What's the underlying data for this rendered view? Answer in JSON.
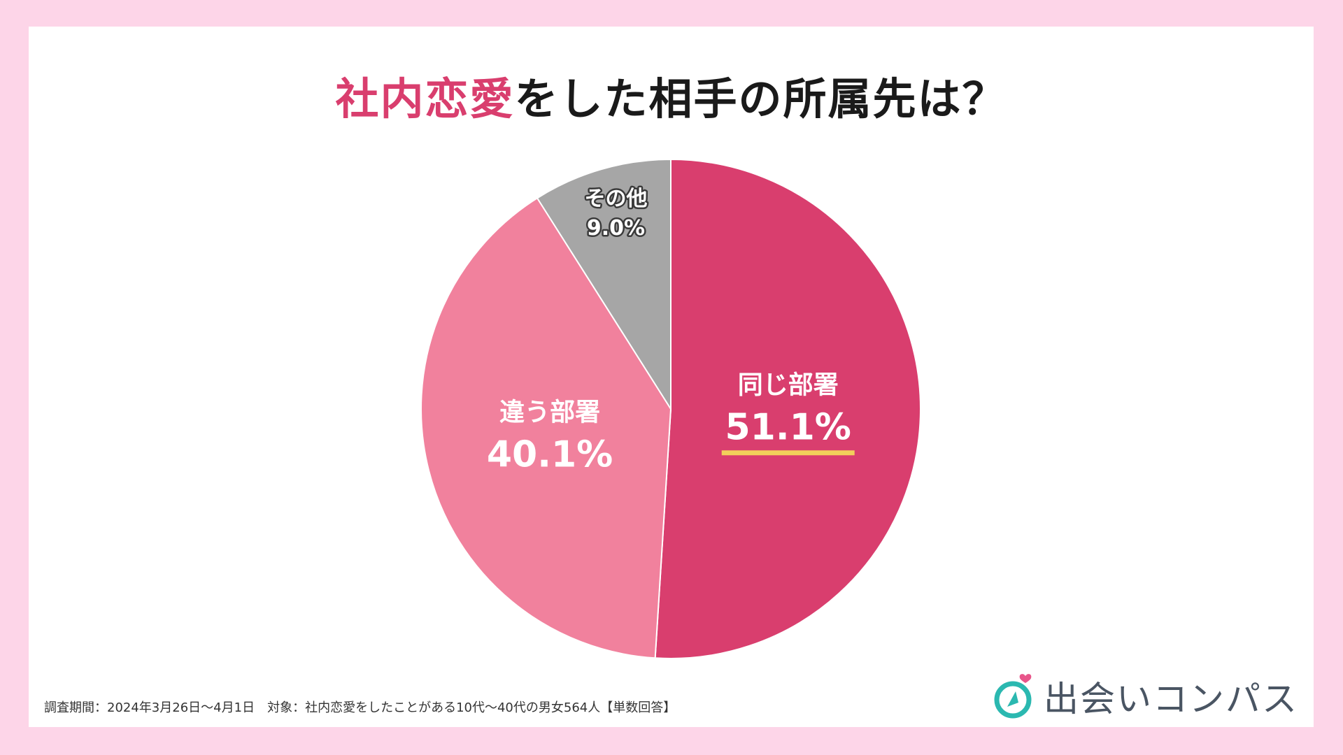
{
  "header": {
    "title_accent": "社内恋愛",
    "title_rest": "をした相手の所属先は？"
  },
  "footnote": "調査期間：2024年3月26日〜4月1日　対象：社内恋愛をしたことがある10代〜40代の男女564人【単数回答】",
  "brand": {
    "name": "出会いコンパス"
  },
  "colors": {
    "accent": "#d93e6e",
    "highlight": "#f2cf5b"
  },
  "chart_data": {
    "type": "pie",
    "title": "社内恋愛をした相手の所属先は？",
    "slices": [
      {
        "label": "同じ部署",
        "value": 51.1,
        "value_label": "51.1%",
        "color": "#d93e6e"
      },
      {
        "label": "違う部署",
        "value": 40.1,
        "value_label": "40.1%",
        "color": "#f1819d"
      },
      {
        "label": "その他",
        "value": 9.0,
        "value_label": "9.0%",
        "color": "#a6a6a6"
      }
    ],
    "start": "12 o'clock",
    "direction": "clockwise",
    "highlight": "同じ部署"
  }
}
